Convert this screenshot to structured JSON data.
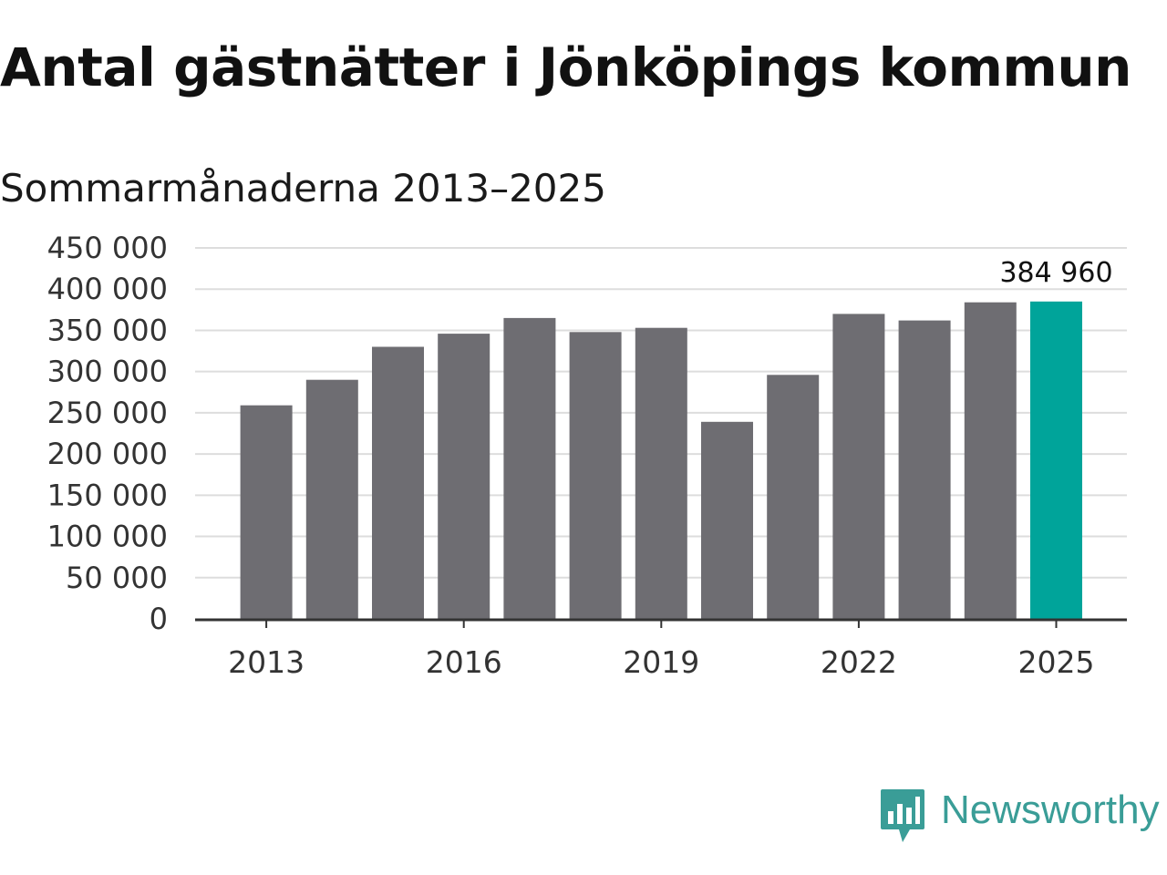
{
  "title": "Antal gästnätter i Jönköpings kommun",
  "subtitle": "Sommarmånaderna 2013–2025",
  "colors": {
    "bar": "#6e6d72",
    "highlight": "#00a49a",
    "grid": "#dddddd",
    "axis": "#333333",
    "brand": "#3a9d97"
  },
  "brand": {
    "name": "Newsworthy",
    "icon": "newsworthy-logo-icon"
  },
  "chart_data": {
    "type": "bar",
    "categories": [
      "2013",
      "2014",
      "2015",
      "2016",
      "2017",
      "2018",
      "2019",
      "2020",
      "2021",
      "2022",
      "2023",
      "2024",
      "2025"
    ],
    "values": [
      259000,
      290000,
      330000,
      346000,
      365000,
      348000,
      353000,
      239000,
      296000,
      370000,
      362000,
      384000,
      384960
    ],
    "highlight_index": 12,
    "data_label": "384 960",
    "xticks": [
      "2013",
      "2016",
      "2019",
      "2022",
      "2025"
    ],
    "yticks": [
      "0",
      "50 000",
      "100 000",
      "150 000",
      "200 000",
      "250 000",
      "300 000",
      "350 000",
      "400 000",
      "450 000"
    ],
    "ylim": [
      0,
      450000
    ],
    "grid": true,
    "xlabel": "",
    "ylabel": ""
  }
}
